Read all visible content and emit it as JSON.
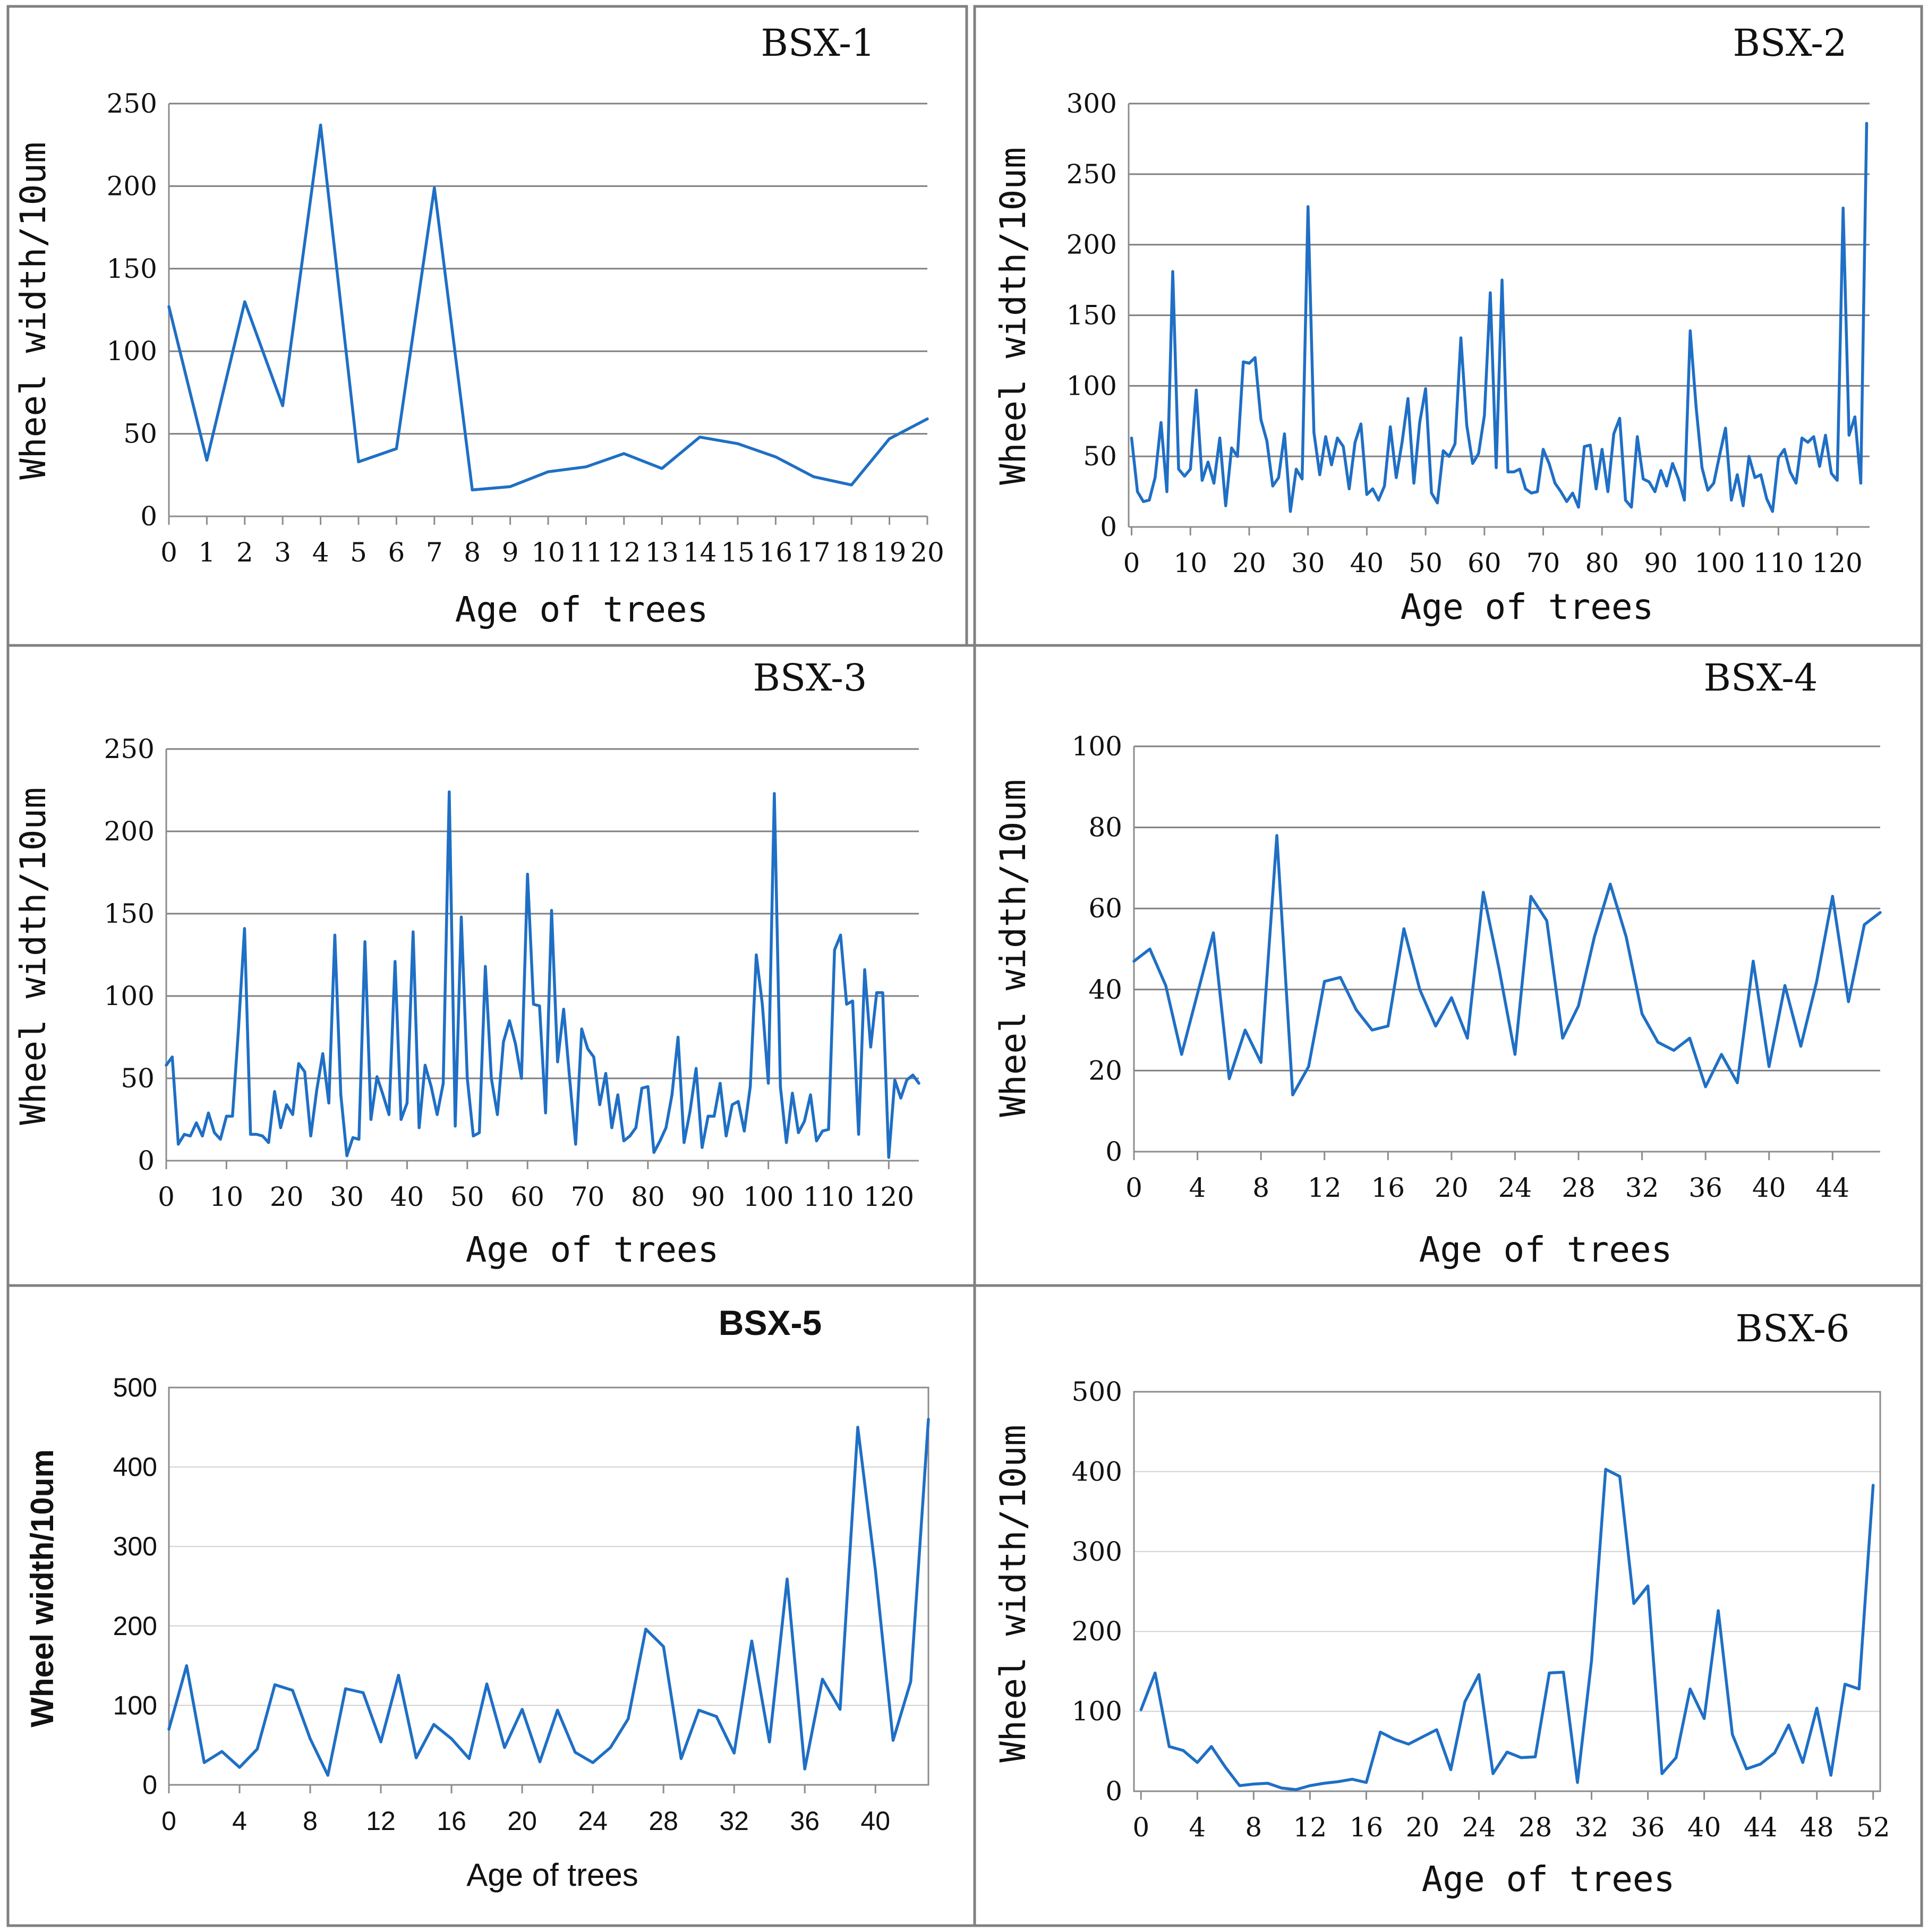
{
  "figure": {
    "line_color": "#1f6fc5",
    "frame_color": "#808080"
  },
  "chart_data": [
    {
      "id": "bsx1",
      "type": "line",
      "title": "BSX-1",
      "xlabel": "Age of trees",
      "ylabel": "Wheel width/10um",
      "ylim": [
        0,
        250
      ],
      "yticks": [
        0,
        50,
        100,
        150,
        200,
        250
      ],
      "xlim": [
        0,
        20
      ],
      "xticks": [
        0,
        1,
        2,
        3,
        4,
        5,
        6,
        7,
        8,
        9,
        10,
        11,
        12,
        13,
        14,
        15,
        16,
        17,
        18,
        19,
        20
      ],
      "grid": "major-dark",
      "font": "serif",
      "x": [
        0,
        1,
        2,
        3,
        4,
        5,
        6,
        7,
        8,
        9,
        10,
        11,
        12,
        13,
        14,
        15,
        16,
        17,
        18,
        19,
        20
      ],
      "y": [
        127,
        34,
        130,
        67,
        237,
        33,
        41,
        199,
        16,
        18,
        27,
        30,
        38,
        29,
        48,
        44,
        36,
        24,
        19,
        47,
        59
      ]
    },
    {
      "id": "bsx2",
      "type": "line",
      "title": "BSX-2",
      "xlabel": "Age of trees",
      "ylabel": "Wheel width/10um",
      "ylim": [
        0,
        300
      ],
      "yticks": [
        0,
        50,
        100,
        150,
        200,
        250,
        300
      ],
      "xlim": [
        -0.5,
        125.5
      ],
      "xticks": [
        0,
        10,
        20,
        30,
        40,
        50,
        60,
        70,
        80,
        90,
        100,
        110,
        120
      ],
      "grid": "major-dark",
      "font": "serif",
      "x": [
        0,
        1,
        2,
        3,
        4,
        5,
        6,
        7,
        8,
        9,
        10,
        11,
        12,
        13,
        14,
        15,
        16,
        17,
        18,
        19,
        20,
        21,
        22,
        23,
        24,
        25,
        26,
        27,
        28,
        29,
        30,
        31,
        32,
        33,
        34,
        35,
        36,
        37,
        38,
        39,
        40,
        41,
        42,
        43,
        44,
        45,
        46,
        47,
        48,
        49,
        50,
        51,
        52,
        53,
        54,
        55,
        56,
        57,
        58,
        59,
        60,
        61,
        62,
        63,
        64,
        65,
        66,
        67,
        68,
        69,
        70,
        71,
        72,
        73,
        74,
        75,
        76,
        77,
        78,
        79,
        80,
        81,
        82,
        83,
        84,
        85,
        86,
        87,
        88,
        89,
        90,
        91,
        92,
        93,
        94,
        95,
        96,
        97,
        98,
        99,
        100,
        101,
        102,
        103,
        104,
        105,
        106,
        107,
        108,
        109,
        110,
        111,
        112,
        113,
        114,
        115,
        116,
        117,
        118,
        119,
        120,
        121,
        122,
        123,
        124,
        125
      ],
      "y": [
        63,
        25,
        18,
        19,
        35,
        74,
        25,
        181,
        41,
        36,
        41,
        97,
        33,
        46,
        31,
        63,
        15,
        56,
        50,
        117,
        116,
        120,
        76,
        61,
        29,
        35,
        66,
        11,
        41,
        34,
        227,
        67,
        37,
        64,
        44,
        63,
        57,
        27,
        60,
        73,
        23,
        27,
        19,
        29,
        71,
        35,
        60,
        91,
        31,
        74,
        98,
        24,
        17,
        54,
        50,
        59,
        134,
        72,
        45,
        52,
        79,
        166,
        42,
        175,
        39,
        39,
        41,
        27,
        24,
        25,
        55,
        45,
        31,
        25,
        18,
        24,
        14,
        57,
        58,
        27,
        55,
        25,
        66,
        77,
        19,
        14,
        64,
        34,
        32,
        25,
        40,
        29,
        45,
        34,
        19,
        139,
        85,
        42,
        26,
        31,
        51,
        70,
        19,
        37,
        15,
        50,
        35,
        37,
        20,
        11,
        49,
        55,
        39,
        31,
        63,
        60,
        64,
        43,
        65,
        38,
        33,
        226,
        65,
        78,
        31,
        286
      ]
    },
    {
      "id": "bsx3",
      "type": "line",
      "title": "BSX-3",
      "xlabel": "Age of trees",
      "ylabel": "Wheel width/10um",
      "ylim": [
        0,
        250
      ],
      "yticks": [
        0,
        50,
        100,
        150,
        200,
        250
      ],
      "xlim": [
        0,
        125
      ],
      "xticks": [
        0,
        10,
        20,
        30,
        40,
        50,
        60,
        70,
        80,
        90,
        100,
        110,
        120
      ],
      "grid": "major-dark",
      "font": "serif",
      "x": [
        0,
        1,
        2,
        3,
        4,
        5,
        6,
        7,
        8,
        9,
        10,
        11,
        12,
        13,
        14,
        15,
        16,
        17,
        18,
        19,
        20,
        21,
        22,
        23,
        24,
        25,
        26,
        27,
        28,
        29,
        30,
        31,
        32,
        33,
        34,
        35,
        36,
        37,
        38,
        39,
        40,
        41,
        42,
        43,
        44,
        45,
        46,
        47,
        48,
        49,
        50,
        51,
        52,
        53,
        54,
        55,
        56,
        57,
        58,
        59,
        60,
        61,
        62,
        63,
        64,
        65,
        66,
        67,
        68,
        69,
        70,
        71,
        72,
        73,
        74,
        75,
        76,
        77,
        78,
        79,
        80,
        81,
        82,
        83,
        84,
        85,
        86,
        87,
        88,
        89,
        90,
        91,
        92,
        93,
        94,
        95,
        96,
        97,
        98,
        99,
        100,
        101,
        102,
        103,
        104,
        105,
        106,
        107,
        108,
        109,
        110,
        111,
        112,
        113,
        114,
        115,
        116,
        117,
        118,
        119,
        120,
        121,
        122,
        123,
        124,
        125
      ],
      "y": [
        58,
        63,
        10,
        16,
        15,
        23,
        15,
        29,
        17,
        13,
        27,
        27,
        80,
        141,
        16,
        16,
        15,
        11,
        42,
        20,
        34,
        28,
        59,
        54,
        15,
        43,
        65,
        35,
        137,
        40,
        3,
        14,
        13,
        133,
        25,
        51,
        40,
        28,
        121,
        25,
        35,
        139,
        20,
        58,
        45,
        28,
        47,
        224,
        21,
        148,
        50,
        15,
        17,
        118,
        50,
        28,
        72,
        85,
        71,
        50,
        174,
        95,
        94,
        29,
        152,
        60,
        92,
        50,
        10,
        80,
        68,
        63,
        34,
        53,
        20,
        40,
        12,
        15,
        20,
        44,
        45,
        5,
        12,
        20,
        40,
        75,
        11,
        30,
        56,
        8,
        27,
        27,
        47,
        15,
        34,
        36,
        18,
        45,
        125,
        95,
        47,
        223,
        45,
        11,
        41,
        17,
        24,
        40,
        12,
        18,
        19,
        128,
        137,
        95,
        97,
        16,
        116,
        69,
        102,
        102,
        2,
        49,
        38,
        49,
        52,
        47
      ]
    },
    {
      "id": "bsx4",
      "type": "line",
      "title": "BSX-4",
      "xlabel": "Age of trees",
      "ylabel": "Wheel width/10um",
      "ylim": [
        0,
        100
      ],
      "yticks": [
        0,
        20,
        40,
        60,
        80,
        100
      ],
      "xlim": [
        0,
        47
      ],
      "xticks": [
        0,
        4,
        8,
        12,
        16,
        20,
        24,
        28,
        32,
        36,
        40,
        44
      ],
      "grid": "major-dark",
      "font": "serif",
      "x": [
        0,
        1,
        2,
        3,
        4,
        5,
        6,
        7,
        8,
        9,
        10,
        11,
        12,
        13,
        14,
        15,
        16,
        17,
        18,
        19,
        20,
        21,
        22,
        23,
        24,
        25,
        26,
        27,
        28,
        29,
        30,
        31,
        32,
        33,
        34,
        35,
        36,
        37,
        38,
        39,
        40,
        41,
        42,
        43,
        44,
        45,
        46,
        47
      ],
      "y": [
        47,
        50,
        41,
        24,
        39,
        54,
        18,
        30,
        22,
        78,
        14,
        21,
        42,
        43,
        35,
        30,
        31,
        55,
        40,
        31,
        38,
        28,
        64,
        45,
        24,
        63,
        57,
        28,
        36,
        53,
        66,
        53,
        34,
        27,
        25,
        28,
        16,
        24,
        17,
        47,
        21,
        41,
        26,
        42,
        63,
        37,
        56,
        59
      ]
    },
    {
      "id": "bsx5",
      "type": "line",
      "title": "BSX-5",
      "xlabel": "Age of trees",
      "ylabel": "Wheel width/10um",
      "ylim": [
        0,
        500
      ],
      "yticks": [
        0,
        100,
        200,
        300,
        400,
        500
      ],
      "xlim": [
        0,
        43
      ],
      "xticks": [
        0,
        4,
        8,
        12,
        16,
        20,
        24,
        28,
        32,
        36,
        40
      ],
      "grid": "light",
      "font": "sans",
      "x": [
        0,
        1,
        2,
        3,
        4,
        5,
        6,
        7,
        8,
        9,
        10,
        11,
        12,
        13,
        14,
        15,
        16,
        17,
        18,
        19,
        20,
        21,
        22,
        23,
        24,
        25,
        26,
        27,
        28,
        29,
        30,
        31,
        32,
        33,
        34,
        35,
        36,
        37,
        38,
        39,
        40,
        41,
        42,
        43
      ],
      "y": [
        70,
        150,
        28,
        42,
        22,
        45,
        126,
        119,
        58,
        12,
        121,
        116,
        54,
        138,
        34,
        76,
        58,
        33,
        127,
        47,
        95,
        29,
        94,
        41,
        28,
        47,
        83,
        196,
        174,
        33,
        94,
        86,
        40,
        181,
        54,
        259,
        20,
        133,
        95,
        450,
        270,
        56,
        130,
        460
      ]
    },
    {
      "id": "bsx6",
      "type": "line",
      "title": "BSX-6",
      "xlabel": "Age of trees",
      "ylabel": "Wheel width/10um",
      "ylim": [
        0,
        500
      ],
      "yticks": [
        0,
        100,
        200,
        300,
        400,
        500
      ],
      "xlim": [
        -0.5,
        52.5
      ],
      "xticks": [
        0,
        4,
        8,
        12,
        16,
        20,
        24,
        28,
        32,
        36,
        40,
        44,
        48,
        52
      ],
      "grid": "light",
      "font": "serif",
      "x": [
        0,
        1,
        2,
        3,
        4,
        5,
        6,
        7,
        8,
        9,
        10,
        11,
        12,
        13,
        14,
        15,
        16,
        17,
        18,
        19,
        20,
        21,
        22,
        23,
        24,
        25,
        26,
        27,
        28,
        29,
        30,
        31,
        32,
        33,
        34,
        35,
        36,
        37,
        38,
        39,
        40,
        41,
        42,
        43,
        44,
        45,
        46,
        47,
        48,
        49,
        50,
        51,
        52
      ],
      "y": [
        102,
        148,
        56,
        51,
        36,
        56,
        30,
        7,
        9,
        10,
        4,
        2,
        7,
        10,
        12,
        15,
        11,
        74,
        65,
        59,
        68,
        77,
        27,
        112,
        146,
        22,
        49,
        42,
        43,
        148,
        149,
        11,
        164,
        403,
        394,
        235,
        257,
        22,
        42,
        128,
        91,
        226,
        71,
        28,
        34,
        48,
        83,
        36,
        104,
        20,
        134,
        128,
        383
      ]
    }
  ]
}
